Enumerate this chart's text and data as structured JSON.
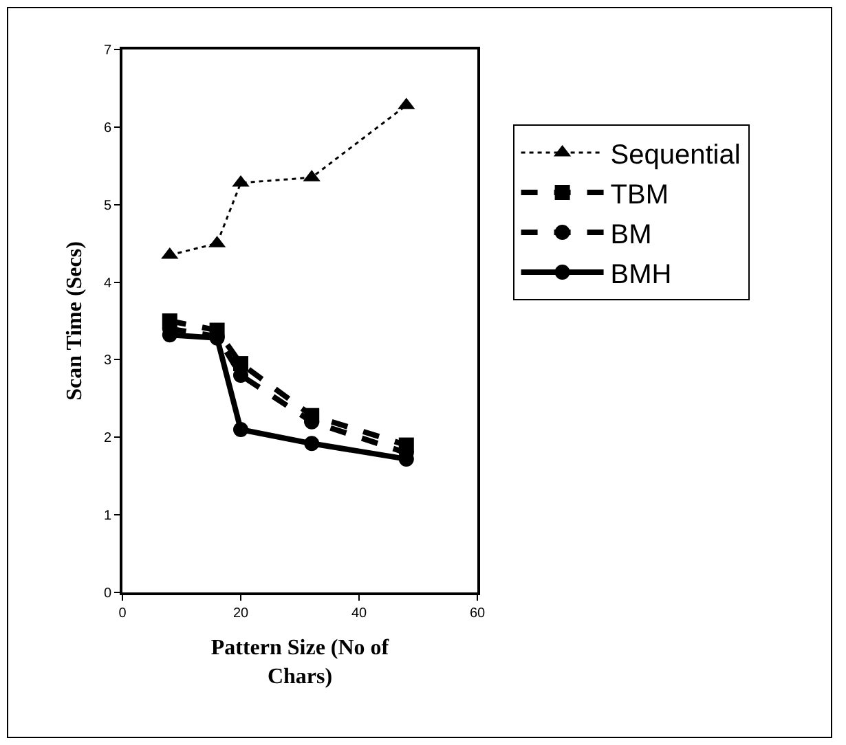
{
  "chart_data": {
    "type": "line",
    "xlabel": "Pattern Size (No of Chars)",
    "ylabel": "Scan Time (Secs)",
    "x": [
      8,
      16,
      20,
      32,
      48
    ],
    "series": [
      {
        "name": "Sequential",
        "color": "#000000",
        "marker": "triangle",
        "line_style": "dotted",
        "values": [
          4.35,
          4.5,
          5.28,
          5.35,
          6.28
        ]
      },
      {
        "name": "TBM",
        "color": "#000000",
        "marker": "square",
        "line_style": "dashed",
        "values": [
          3.5,
          3.38,
          2.95,
          2.28,
          1.9
        ]
      },
      {
        "name": "BM",
        "color": "#000000",
        "marker": "circle",
        "line_style": "dashed",
        "values": [
          3.4,
          3.3,
          2.8,
          2.2,
          1.8
        ]
      },
      {
        "name": "BMH",
        "color": "#000000",
        "marker": "circle",
        "line_style": "solid",
        "values": [
          3.32,
          3.28,
          2.1,
          1.92,
          1.72
        ]
      }
    ],
    "xlim": [
      0,
      60
    ],
    "xticks": [
      0,
      20,
      40,
      60
    ],
    "ylim": [
      0,
      7
    ],
    "yticks": [
      0,
      1,
      2,
      3,
      4,
      5,
      6,
      7
    ],
    "grid": false,
    "legend": "right"
  }
}
